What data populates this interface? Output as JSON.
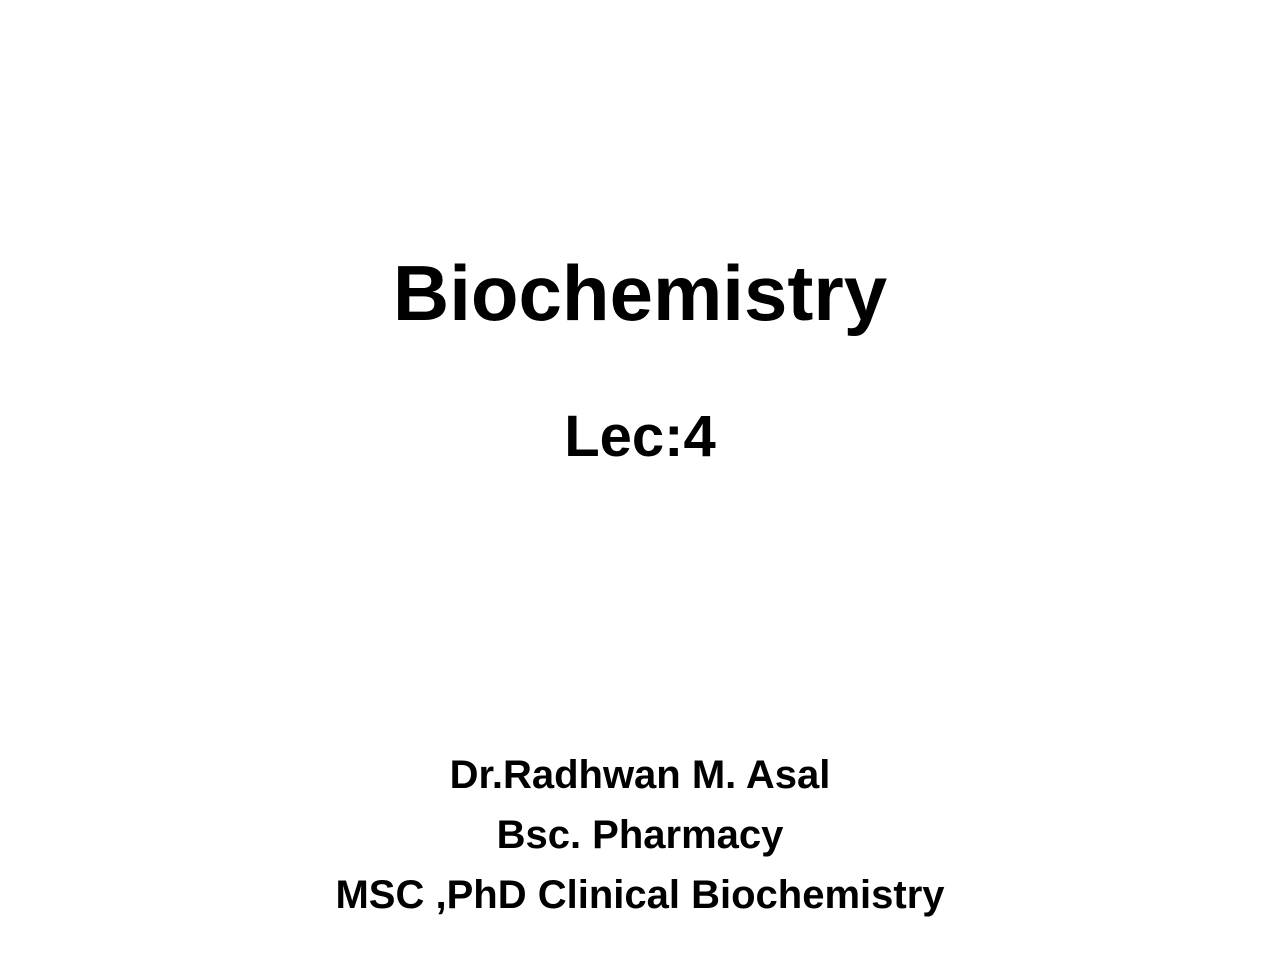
{
  "slide": {
    "title": "Biochemistry",
    "subtitle": "Lec:4",
    "author_name": "Dr.Radhwan M. Asal",
    "author_degree1": "Bsc. Pharmacy",
    "author_degree2": "MSC ,PhD  Clinical Biochemistry",
    "background_color": "#ffffff",
    "text_color": "#000000",
    "title_fontsize": 78,
    "subtitle_fontsize": 58,
    "author_fontsize": 40
  }
}
